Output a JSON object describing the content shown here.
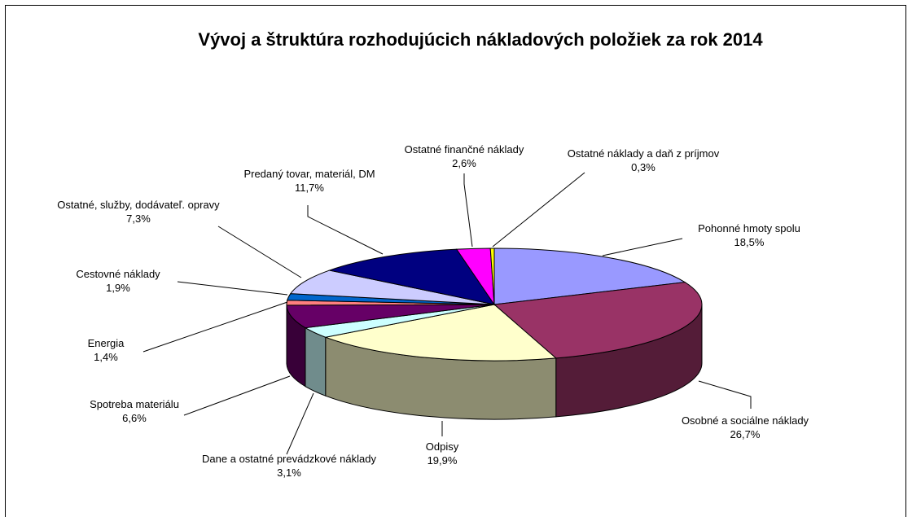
{
  "chart_data": {
    "type": "pie",
    "title": "Vývoj a štruktúra rozhodujúcich nákladových položiek za rok 2014",
    "categories": [
      "Pohonné hmoty spolu",
      "Osobné a sociálne náklady",
      "Odpisy",
      "Dane a ostatné prevádzkové náklady",
      "Spotreba materiálu",
      "Energia",
      "Cestovné náklady",
      "Ostatné, služby, dodávateľ. opravy",
      "Predaný tovar, materiál, DM",
      "Ostatné finančné náklady",
      "Ostatné náklady a daň z príjmov"
    ],
    "values": [
      18.5,
      26.7,
      19.9,
      3.1,
      6.6,
      1.4,
      1.9,
      7.3,
      11.7,
      2.6,
      0.3
    ],
    "value_labels": [
      "18,5%",
      "26,7%",
      "19,9%",
      "3,1%",
      "6,6%",
      "1,4%",
      "1,9%",
      "7,3%",
      "11,7%",
      "2,6%",
      "0,3%"
    ],
    "colors": [
      "#9999ff",
      "#993366",
      "#ffffcc",
      "#ccffff",
      "#660066",
      "#ff8080",
      "#0066cc",
      "#ccccff",
      "#000080",
      "#ff00ff",
      "#ffff00"
    ]
  }
}
